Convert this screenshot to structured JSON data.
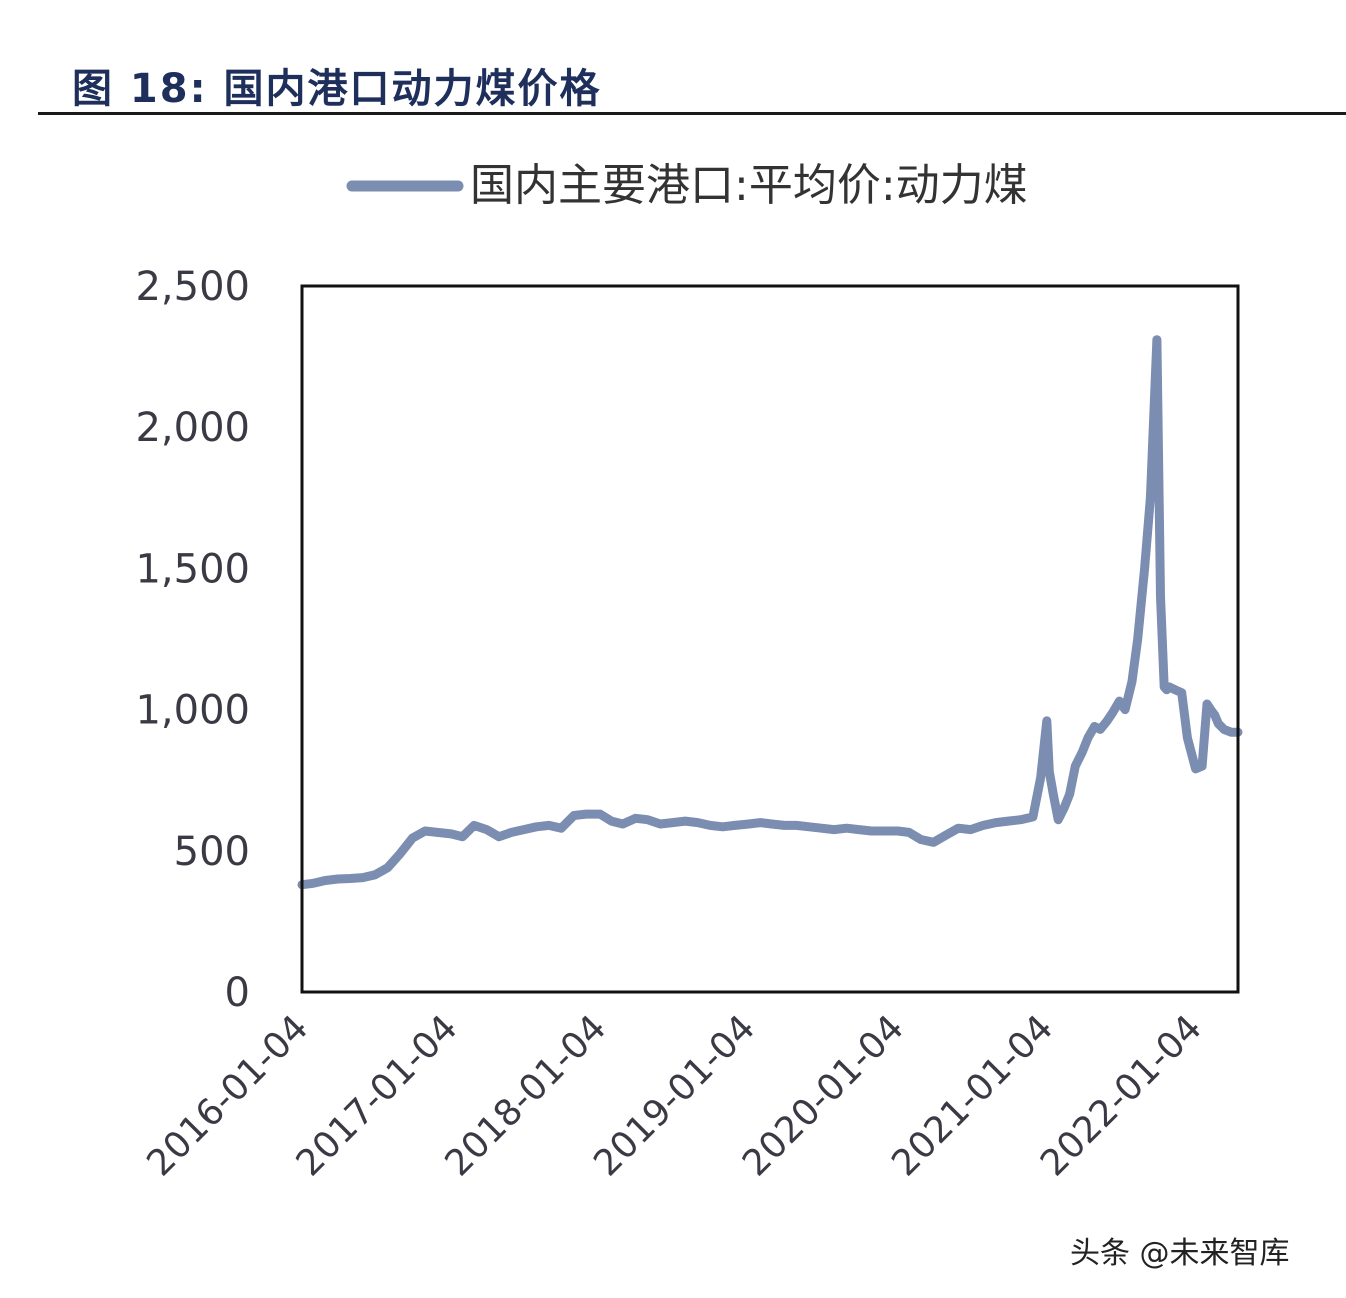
{
  "figure": {
    "title": "图  18:  国内港口动力煤价格"
  },
  "watermark": "头条 @未来智库",
  "colors": {
    "line": "#7b8db0",
    "axis": "#111111",
    "title": "#1f2f5c"
  },
  "chart_data": {
    "type": "line",
    "title": "",
    "xlabel": "",
    "ylabel": "",
    "ylim": [
      0,
      2500
    ],
    "xlim": [
      "2016-01-04",
      "2022-04-18"
    ],
    "yticks": [
      "0",
      "500",
      "1,000",
      "1,500",
      "2,000",
      "2,500"
    ],
    "ytick_values": [
      0,
      500,
      1000,
      1500,
      2000,
      2500
    ],
    "xticks": [
      "2016-01-04",
      "2017-01-04",
      "2018-01-04",
      "2019-01-04",
      "2020-01-04",
      "2021-01-04",
      "2022-01-04"
    ],
    "legend": {
      "position": "top"
    },
    "grid": false,
    "series": [
      {
        "name": "国内主要港口:平均价:动力煤",
        "x": [
          "2016-01-04",
          "2016-02-01",
          "2016-03-01",
          "2016-04-01",
          "2016-05-01",
          "2016-06-01",
          "2016-07-01",
          "2016-08-01",
          "2016-09-01",
          "2016-10-01",
          "2016-11-01",
          "2016-12-01",
          "2017-01-04",
          "2017-02-01",
          "2017-03-01",
          "2017-04-01",
          "2017-05-01",
          "2017-06-01",
          "2017-07-01",
          "2017-08-01",
          "2017-09-01",
          "2017-10-01",
          "2017-11-01",
          "2017-12-01",
          "2018-01-04",
          "2018-02-01",
          "2018-03-01",
          "2018-04-01",
          "2018-05-01",
          "2018-06-01",
          "2018-07-01",
          "2018-08-01",
          "2018-09-01",
          "2018-10-01",
          "2018-11-01",
          "2018-12-01",
          "2019-01-04",
          "2019-02-01",
          "2019-03-01",
          "2019-04-01",
          "2019-05-01",
          "2019-06-01",
          "2019-07-01",
          "2019-08-01",
          "2019-09-01",
          "2019-10-01",
          "2019-11-01",
          "2019-12-01",
          "2020-01-04",
          "2020-02-01",
          "2020-03-01",
          "2020-04-01",
          "2020-05-01",
          "2020-06-01",
          "2020-07-01",
          "2020-08-01",
          "2020-09-01",
          "2020-10-01",
          "2020-11-01",
          "2020-12-01",
          "2020-12-20",
          "2021-01-04",
          "2021-01-10",
          "2021-01-20",
          "2021-02-01",
          "2021-02-15",
          "2021-03-01",
          "2021-03-15",
          "2021-04-01",
          "2021-04-15",
          "2021-05-01",
          "2021-05-15",
          "2021-06-01",
          "2021-06-15",
          "2021-07-01",
          "2021-07-15",
          "2021-08-01",
          "2021-08-15",
          "2021-09-01",
          "2021-09-15",
          "2021-10-01",
          "2021-10-10",
          "2021-10-19",
          "2021-10-25",
          "2021-11-01",
          "2021-11-15",
          "2021-12-01",
          "2021-12-15",
          "2022-01-04",
          "2022-01-20",
          "2022-02-01",
          "2022-02-10",
          "2022-02-20",
          "2022-03-01",
          "2022-03-15",
          "2022-04-01",
          "2022-04-18"
        ],
        "values": [
          380,
          385,
          395,
          400,
          402,
          405,
          415,
          440,
          490,
          545,
          570,
          565,
          560,
          550,
          590,
          575,
          550,
          565,
          575,
          585,
          590,
          580,
          625,
          630,
          630,
          605,
          595,
          615,
          610,
          595,
          600,
          605,
          600,
          590,
          585,
          590,
          595,
          600,
          595,
          590,
          590,
          585,
          580,
          575,
          580,
          575,
          570,
          570,
          570,
          565,
          540,
          530,
          555,
          580,
          575,
          590,
          600,
          605,
          610,
          620,
          760,
          960,
          780,
          700,
          610,
          650,
          700,
          800,
          850,
          900,
          940,
          930,
          960,
          990,
          1030,
          1000,
          1100,
          1250,
          1500,
          1750,
          2310,
          1400,
          1080,
          1070,
          1080,
          1070,
          1060,
          900,
          790,
          800,
          1020,
          1000,
          980,
          950,
          930,
          920,
          920
        ]
      }
    ]
  }
}
